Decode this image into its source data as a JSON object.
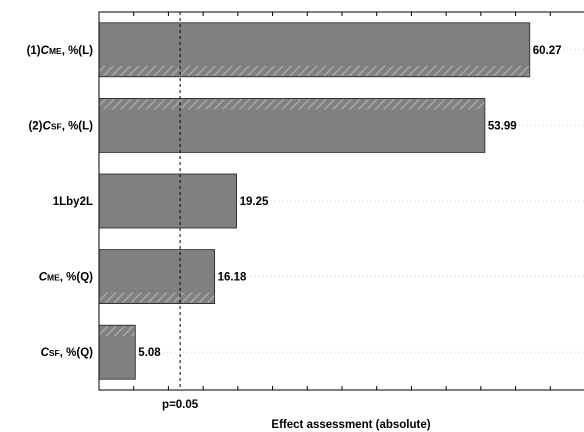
{
  "chart_data": {
    "type": "bar",
    "orientation": "horizontal",
    "categories": [
      {
        "id": "cme-l",
        "prefix": "(1)",
        "var": "C",
        "sub": "ME",
        "suffix": ", %(L)"
      },
      {
        "id": "csf-l",
        "prefix": "(2)",
        "var": "C",
        "sub": "SF",
        "suffix": ", %(L)"
      },
      {
        "id": "interaction",
        "prefix": "",
        "var": "",
        "sub": "",
        "suffix": "1Lby2L"
      },
      {
        "id": "cme-q",
        "prefix": "",
        "var": "C",
        "sub": "ME",
        "suffix": ", %(Q)"
      },
      {
        "id": "csf-q",
        "prefix": "",
        "var": "C",
        "sub": "SF",
        "suffix": ", %(Q)"
      }
    ],
    "values": [
      60.27,
      53.99,
      19.25,
      16.18,
      5.08
    ],
    "value_labels": [
      "60.27",
      "53.99",
      "19.25",
      "16.18",
      "5.08"
    ],
    "xlim": [
      0,
      68
    ],
    "reference_line": {
      "value": 11.35,
      "label": "p=0.05"
    },
    "xlabel": "Effect assessment (absolute)",
    "grid": true,
    "colors": {
      "bar": "#808080",
      "bar_edge": "#222222",
      "hatch": "#a8a8a8",
      "grid": "#d0d0d0",
      "axis": "#000000"
    }
  }
}
